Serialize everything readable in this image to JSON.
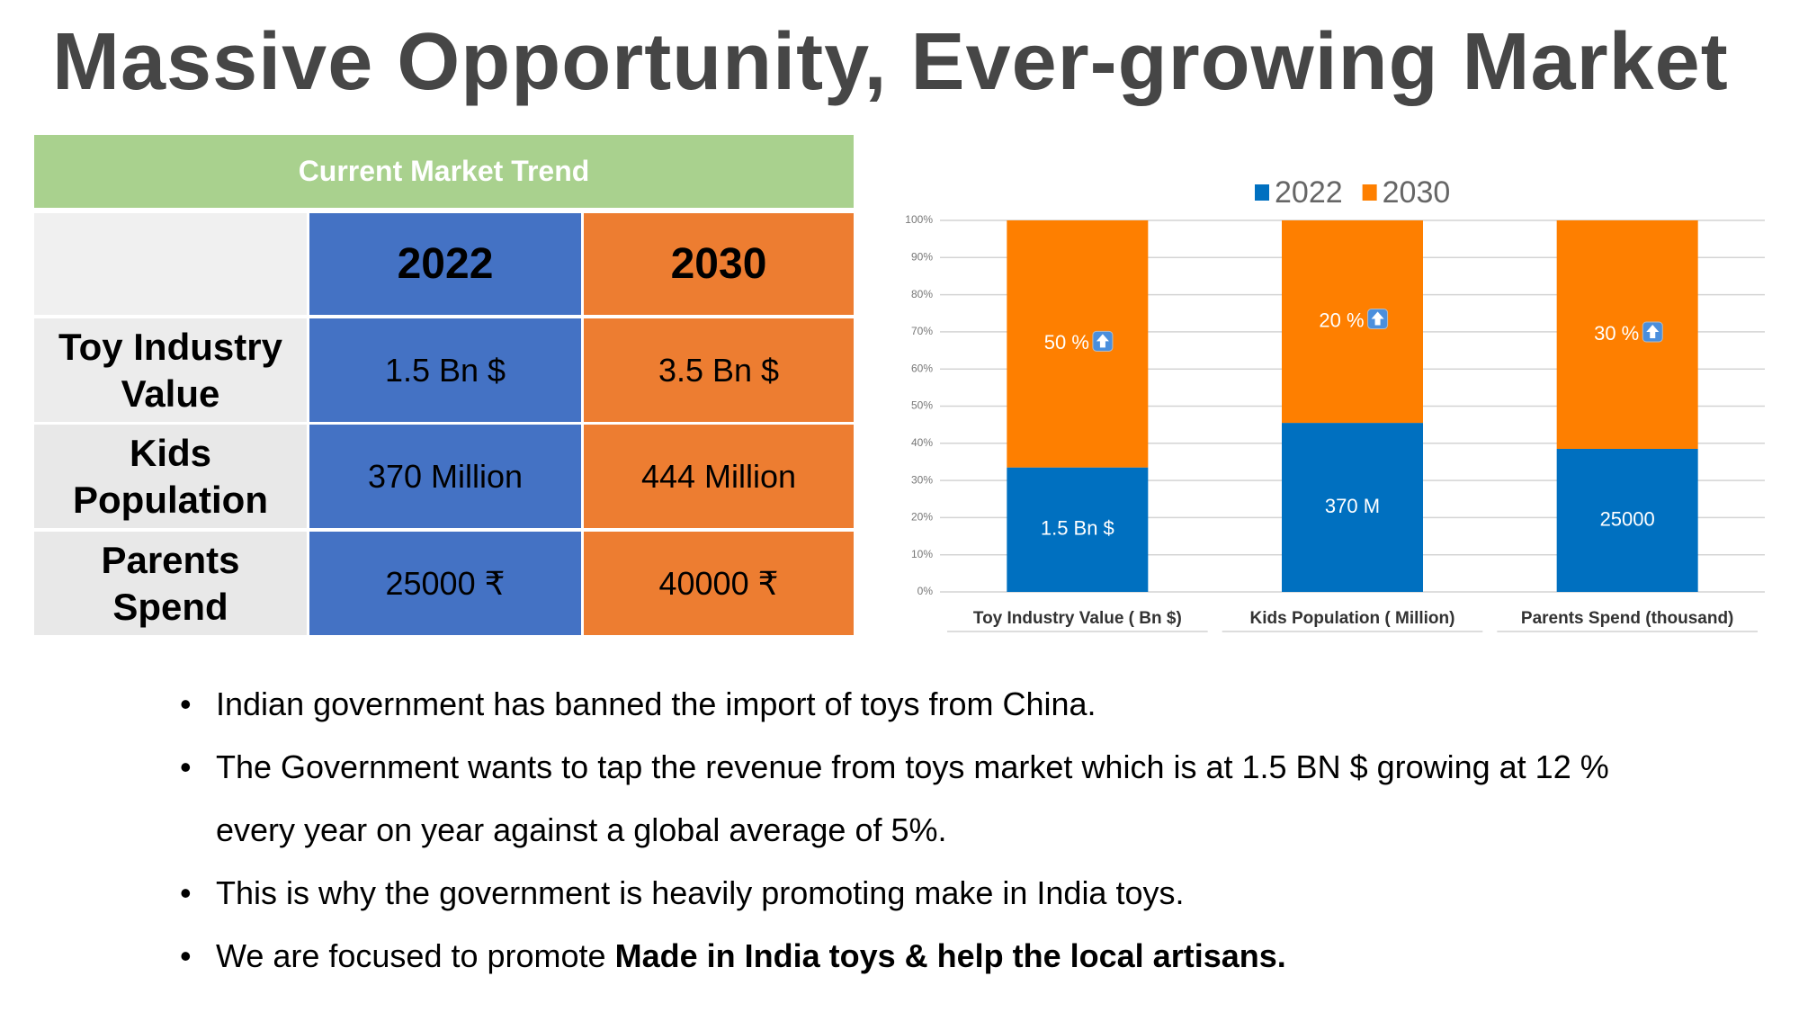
{
  "title": "Massive Opportunity, Ever-growing Market",
  "table": {
    "title": "Current Market Trend",
    "header": [
      "2022",
      "2030"
    ],
    "rows": [
      [
        "Toy Industry Value",
        "1.5 Bn $",
        "3.5 Bn $"
      ],
      [
        "Kids Population",
        "370 Million",
        "444 Million"
      ],
      [
        "Parents Spend",
        "25000 ₹",
        "40000 ₹"
      ]
    ]
  },
  "chart_data": {
    "type": "stacked_bar",
    "categories": [
      "Toy Industry Value ( Bn $)",
      "Kids Population ( Million)",
      "Parents Spend (thousand)"
    ],
    "series": [
      {
        "name": "2022",
        "color": "#0070c0",
        "values": [
          33.5,
          45.5,
          38.5
        ],
        "labels": [
          "1.5 Bn $",
          "370 M",
          "25000"
        ]
      },
      {
        "name": "2030",
        "color": "#fe7f00",
        "values": [
          66.5,
          54.5,
          61.5
        ],
        "labels": [
          "50 %",
          "20 %",
          "30 %"
        ]
      }
    ],
    "ylim": [
      0,
      100
    ],
    "yticks": [
      {
        "value": 0,
        "label": "0%"
      },
      {
        "value": 10,
        "label": "10%"
      },
      {
        "value": 20,
        "label": "20%"
      },
      {
        "value": 30,
        "label": "30%"
      },
      {
        "value": 40,
        "label": "40%"
      },
      {
        "value": 50,
        "label": "50%"
      },
      {
        "value": 60,
        "label": "60%"
      },
      {
        "value": 70,
        "label": "70%"
      },
      {
        "value": 80,
        "label": "80%"
      },
      {
        "value": 90,
        "label": "90%"
      },
      {
        "value": 100,
        "label": "100%"
      }
    ],
    "grid": true,
    "legend": "top"
  },
  "bullets": [
    "Indian government has banned the import of toys from China.",
    "The Government wants to tap the revenue from toys market which is at 1.5 BN $ growing at 12 % every year on year against a global average of 5%.",
    "This is why the government is heavily promoting make in India toys.",
    {
      "text": "We are focused to promote ",
      "bold": "Made in India toys & help the local artisans."
    }
  ]
}
